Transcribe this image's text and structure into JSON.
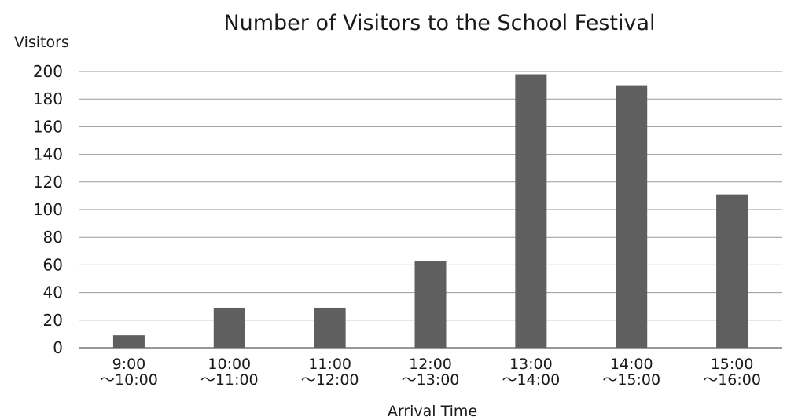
{
  "chart_data": {
    "type": "bar",
    "title": "Number of Visitors to the School Festival",
    "xlabel": "Arrival Time",
    "ylabel": "Visitors",
    "categories": [
      [
        "9:00",
        "〜10:00"
      ],
      [
        "10:00",
        "〜11:00"
      ],
      [
        "11:00",
        "〜12:00"
      ],
      [
        "12:00",
        "〜13:00"
      ],
      [
        "13:00",
        "〜14:00"
      ],
      [
        "14:00",
        "〜15:00"
      ],
      [
        "15:00",
        "〜16:00"
      ]
    ],
    "values": [
      9,
      29,
      29,
      63,
      198,
      190,
      111
    ],
    "ylim": [
      0,
      200
    ],
    "yticks": [
      0,
      20,
      40,
      60,
      80,
      100,
      120,
      140,
      160,
      180,
      200
    ],
    "grid": true,
    "legend": "none",
    "colors": {
      "bar": "#5f5f5f",
      "grid": "#9a9a9a"
    }
  }
}
